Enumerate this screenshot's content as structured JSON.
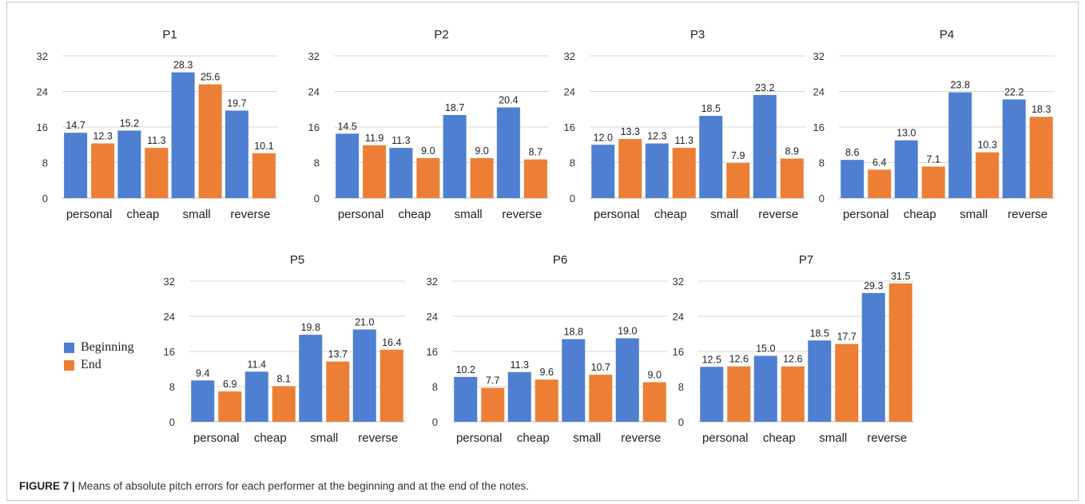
{
  "figure": {
    "label": "FIGURE 7 |",
    "caption": "Means of absolute pitch errors for each performer at the beginning and at the end of the notes."
  },
  "legend": [
    {
      "name": "Beginning",
      "color": "#4f7fd1"
    },
    {
      "name": "End",
      "color": "#ec7f35"
    }
  ],
  "chart_data": [
    {
      "type": "bar",
      "title": "P1",
      "categories": [
        "personal",
        "cheap",
        "small",
        "reverse"
      ],
      "yticks": [
        0,
        8,
        16,
        24,
        32
      ],
      "ylim": [
        0,
        32
      ],
      "series": [
        {
          "name": "Beginning",
          "values": [
            14.7,
            15.2,
            28.3,
            19.7
          ]
        },
        {
          "name": "End",
          "values": [
            12.3,
            11.3,
            25.6,
            10.1
          ]
        }
      ]
    },
    {
      "type": "bar",
      "title": "P2",
      "categories": [
        "personal",
        "cheap",
        "small",
        "reverse"
      ],
      "yticks": [
        0,
        8,
        16,
        24,
        32
      ],
      "ylim": [
        0,
        32
      ],
      "series": [
        {
          "name": "Beginning",
          "values": [
            14.5,
            11.3,
            18.7,
            20.4
          ]
        },
        {
          "name": "End",
          "values": [
            11.9,
            9.0,
            9.0,
            8.7
          ]
        }
      ]
    },
    {
      "type": "bar",
      "title": "P3",
      "categories": [
        "personal",
        "cheap",
        "small",
        "reverse"
      ],
      "yticks": [
        0,
        8,
        16,
        24,
        32
      ],
      "ylim": [
        0,
        32
      ],
      "series": [
        {
          "name": "Beginning",
          "values": [
            12.0,
            12.3,
            18.5,
            23.2
          ]
        },
        {
          "name": "End",
          "values": [
            13.3,
            11.3,
            7.9,
            8.9
          ]
        }
      ]
    },
    {
      "type": "bar",
      "title": "P4",
      "categories": [
        "personal",
        "cheap",
        "small",
        "reverse"
      ],
      "yticks": [
        0,
        8,
        16,
        24,
        32
      ],
      "ylim": [
        0,
        32
      ],
      "series": [
        {
          "name": "Beginning",
          "values": [
            8.6,
            13.0,
            23.8,
            22.2
          ]
        },
        {
          "name": "End",
          "values": [
            6.4,
            7.1,
            10.3,
            18.3
          ]
        }
      ]
    },
    {
      "type": "bar",
      "title": "P5",
      "categories": [
        "personal",
        "cheap",
        "small",
        "reverse"
      ],
      "yticks": [
        0,
        8,
        16,
        24,
        32
      ],
      "ylim": [
        0,
        32
      ],
      "series": [
        {
          "name": "Beginning",
          "values": [
            9.4,
            11.4,
            19.8,
            21.0
          ]
        },
        {
          "name": "End",
          "values": [
            6.9,
            8.1,
            13.7,
            16.4
          ]
        }
      ]
    },
    {
      "type": "bar",
      "title": "P6",
      "categories": [
        "personal",
        "cheap",
        "small",
        "reverse"
      ],
      "yticks": [
        0,
        8,
        16,
        24,
        32
      ],
      "ylim": [
        0,
        32
      ],
      "series": [
        {
          "name": "Beginning",
          "values": [
            10.2,
            11.3,
            18.8,
            19.0
          ]
        },
        {
          "name": "End",
          "values": [
            7.7,
            9.6,
            10.7,
            9.0
          ]
        }
      ]
    },
    {
      "type": "bar",
      "title": "P7",
      "categories": [
        "personal",
        "cheap",
        "small",
        "reverse"
      ],
      "yticks": [
        0,
        8,
        16,
        24,
        32
      ],
      "ylim": [
        0,
        32
      ],
      "series": [
        {
          "name": "Beginning",
          "values": [
            12.5,
            15.0,
            18.5,
            29.3
          ]
        },
        {
          "name": "End",
          "values": [
            12.6,
            12.6,
            17.7,
            31.5
          ]
        }
      ]
    }
  ]
}
